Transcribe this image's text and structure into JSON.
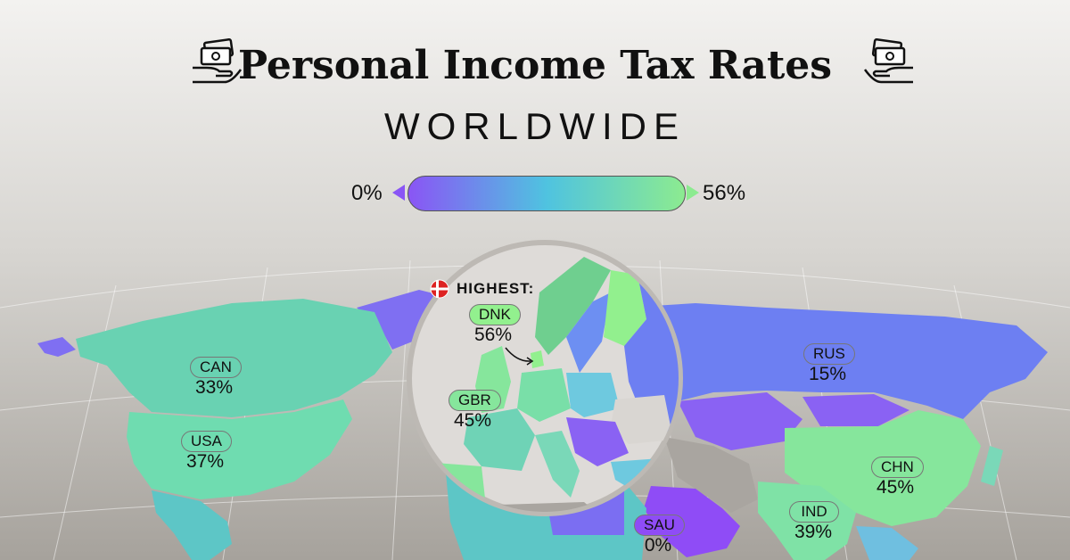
{
  "header": {
    "title": "Personal Income Tax Rates",
    "subtitle": "WORLDWIDE"
  },
  "legend": {
    "min_label": "0%",
    "max_label": "56%",
    "gradient": [
      "#8a55f5",
      "#4fc3e0",
      "#8ceb90"
    ]
  },
  "callout": {
    "label": "HIGHEST:"
  },
  "countries": [
    {
      "code": "CAN",
      "value": "33%",
      "color": "#69d2b2"
    },
    {
      "code": "USA",
      "value": "37%",
      "color": "#6fdcb0"
    },
    {
      "code": "RUS",
      "value": "15%",
      "color": "#6d7ff2"
    },
    {
      "code": "CHN",
      "value": "45%",
      "color": "#86e69c"
    },
    {
      "code": "IND",
      "value": "39%",
      "color": "#7fe2a6"
    },
    {
      "code": "SAU",
      "value": "0%",
      "color": "#8f4cf6"
    },
    {
      "code": "DNK",
      "value": "56%",
      "color": "#92f08e"
    },
    {
      "code": "GBR",
      "value": "45%",
      "color": "#86e69c"
    }
  ]
}
